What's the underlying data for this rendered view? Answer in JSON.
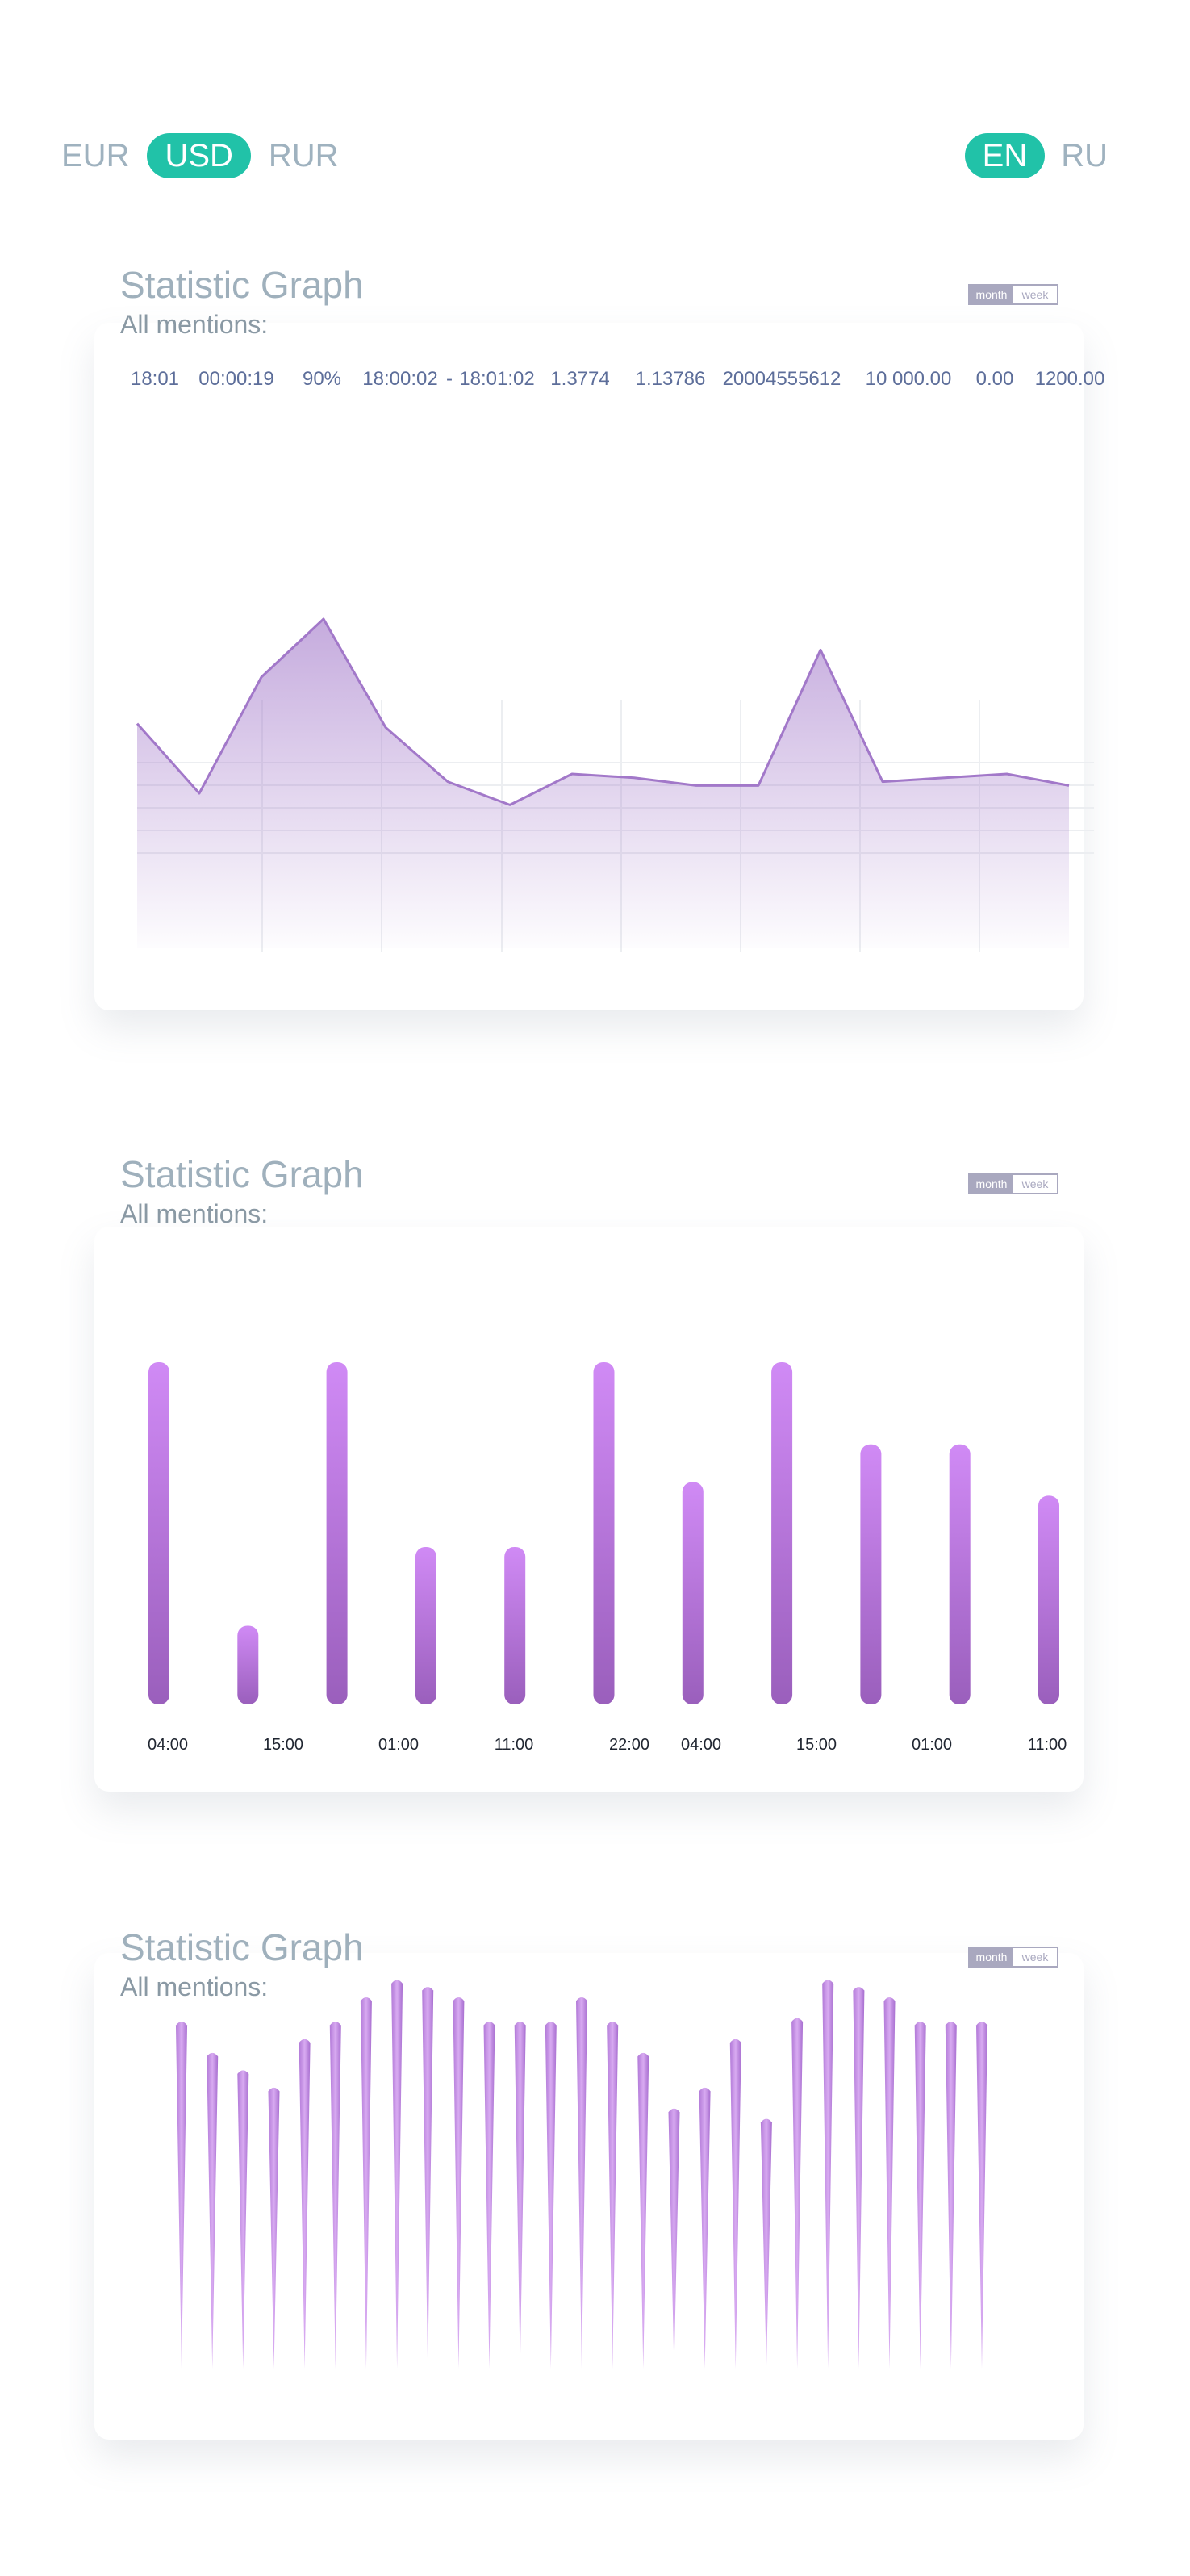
{
  "currency": {
    "options": [
      "EUR",
      "USD",
      "RUR"
    ],
    "selected": "USD"
  },
  "language": {
    "options": [
      "EN",
      "RU"
    ],
    "selected": "EN"
  },
  "colors": {
    "accent": "#21c2a8",
    "purple": "#a278c9",
    "purple_light": "#d08af5",
    "text": "#9fb0bc",
    "stats_text": "#5d6e9a"
  },
  "sections": [
    {
      "title": "Statistic Graph",
      "subtitle": "All mentions:",
      "toggle": {
        "month": "month",
        "week": "week",
        "active": "month"
      }
    },
    {
      "title": "Statistic Graph",
      "subtitle": "All mentions:",
      "toggle": {
        "month": "month",
        "week": "week",
        "active": "month"
      }
    },
    {
      "title": "Statistic Graph",
      "subtitle": "All mentions:",
      "toggle": {
        "month": "month",
        "week": "week",
        "active": "month"
      }
    }
  ],
  "chart_data": [
    {
      "type": "area",
      "stats": [
        "18:01",
        "00:00:19",
        "90%",
        "18:00:02",
        "-",
        "18:01:02",
        "1.3774",
        "1.13786",
        "20004555612",
        "10 000.00",
        "0.00",
        "1200.00"
      ],
      "x": [
        0,
        1,
        2,
        3,
        4,
        5,
        6,
        7,
        8,
        9,
        10,
        11,
        12,
        13,
        14,
        15
      ],
      "values": [
        58,
        40,
        70,
        85,
        57,
        43,
        37,
        45,
        44,
        42,
        42,
        77,
        43,
        44,
        45,
        42
      ],
      "ylim": [
        0,
        100
      ],
      "grid": true
    },
    {
      "type": "bar",
      "categories": [
        "04:00",
        "15:00",
        "01:00",
        "11:00",
        "22:00",
        "04:00",
        "15:00",
        "01:00",
        "11:00",
        "",
        ""
      ],
      "values": [
        100,
        23,
        100,
        46,
        46,
        100,
        65,
        100,
        76,
        76,
        61
      ],
      "ylim": [
        0,
        100
      ]
    },
    {
      "type": "bar",
      "values": [
        100,
        91,
        86,
        81,
        95,
        100,
        107,
        112,
        110,
        107,
        100,
        100,
        100,
        107,
        100,
        91,
        75,
        81,
        95,
        72,
        101,
        112,
        110,
        107,
        100,
        100,
        100
      ],
      "ylim": [
        0,
        112
      ]
    }
  ]
}
